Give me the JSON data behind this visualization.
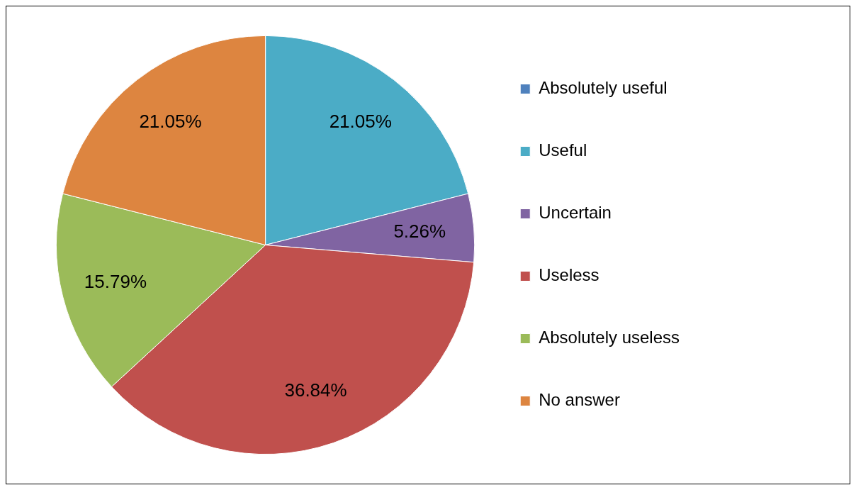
{
  "chart_data": {
    "type": "pie",
    "categories": [
      "Absolutely useful",
      "Useful",
      "Uncertain",
      "Useless",
      "Absolutely useless",
      "No answer"
    ],
    "values": [
      0,
      21.05,
      5.26,
      36.84,
      15.79,
      21.05
    ],
    "colors": [
      "#4f81bd",
      "#4bacc6",
      "#8064a2",
      "#c0504d",
      "#9bbb59",
      "#dd8540"
    ],
    "value_labels": [
      null,
      "21.05%",
      "5.26%",
      "36.84%",
      "15.79%",
      "21.05%"
    ],
    "legend": "right"
  }
}
